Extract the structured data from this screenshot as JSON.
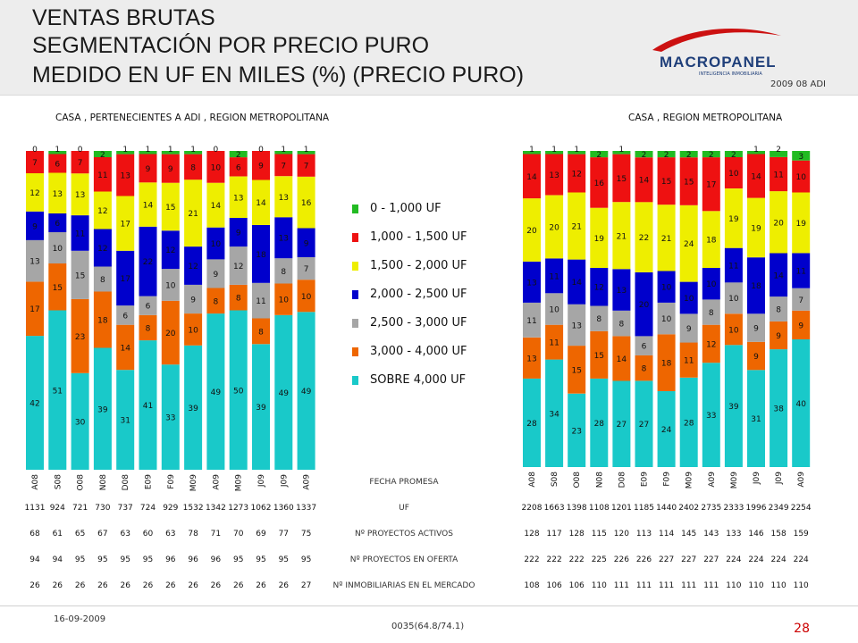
{
  "header": {
    "title_lines": [
      "VENTAS BRUTAS",
      "SEGMENTACIÓN POR PRECIO PURO",
      "MEDIDO EN UF EN MILES (%) (PRECIO PURO)"
    ],
    "logo": "MACROPANEL",
    "logo_sub": "INTELIGENCIA INMOBILIARIA",
    "date_tag": "2009 08 ADI"
  },
  "legend": [
    {
      "label": "0 - 1,000 UF",
      "color": "#22bb22"
    },
    {
      "label": "1,000 - 1,500 UF",
      "color": "#ee1111"
    },
    {
      "label": "1,500 - 2,000 UF",
      "color": "#eeee00"
    },
    {
      "label": "2,000 - 2,500 UF",
      "color": "#0000cc"
    },
    {
      "label": "2,500 - 3,000 UF",
      "color": "#a6a6a6"
    },
    {
      "label": "3,000 - 4,000 UF",
      "color": "#ee6600"
    },
    {
      "label": "SOBRE 4,000 UF",
      "color": "#19c9c9"
    }
  ],
  "row_labels": [
    "FECHA PROMESA",
    "UF",
    "Nº PROYECTOS ACTIVOS",
    "Nº PROYECTOS EN OFERTA",
    "Nº INMOBILIARIAS EN EL MERCADO"
  ],
  "footer": {
    "date": "16-09-2009",
    "code": "0035(64.8/74.1)",
    "page": "28"
  },
  "chart_data": [
    {
      "type": "bar",
      "stacked": true,
      "title": "CASA , PERTENECIENTES A ADI , REGION METROPOLITANA",
      "categories": [
        "A08",
        "S08",
        "O08",
        "N08",
        "D08",
        "E09",
        "F09",
        "M09",
        "A09",
        "M09",
        "J09",
        "J09",
        "A09"
      ],
      "series": [
        {
          "name": "SOBRE 4,000 UF",
          "values": [
            42,
            51,
            30,
            39,
            31,
            41,
            33,
            39,
            49,
            50,
            39,
            49,
            49
          ]
        },
        {
          "name": "3,000 - 4,000 UF",
          "values": [
            17,
            15,
            23,
            18,
            14,
            8,
            20,
            10,
            8,
            8,
            8,
            10,
            10
          ]
        },
        {
          "name": "2,500 - 3,000 UF",
          "values": [
            13,
            10,
            15,
            8,
            6,
            6,
            10,
            9,
            9,
            12,
            11,
            8,
            7
          ]
        },
        {
          "name": "2,000 - 2,500 UF",
          "values": [
            9,
            6,
            11,
            12,
            17,
            22,
            12,
            12,
            10,
            9,
            18,
            13,
            9
          ]
        },
        {
          "name": "1,500 - 2,000 UF",
          "values": [
            12,
            13,
            13,
            12,
            17,
            14,
            15,
            21,
            14,
            13,
            14,
            13,
            16
          ]
        },
        {
          "name": "1,000 - 1,500 UF",
          "values": [
            7,
            6,
            7,
            11,
            13,
            9,
            9,
            8,
            10,
            6,
            9,
            7,
            7
          ]
        },
        {
          "name": "0 - 1,000 UF",
          "values": [
            0,
            1,
            0,
            2,
            1,
            1,
            1,
            1,
            0,
            2,
            0,
            1,
            1
          ]
        }
      ],
      "table": {
        "uf": [
          1131,
          924,
          721,
          730,
          737,
          724,
          929,
          1532,
          1342,
          1273,
          1062,
          1360,
          1337
        ],
        "proyectos_activos": [
          68,
          61,
          65,
          67,
          63,
          60,
          63,
          78,
          71,
          70,
          69,
          77,
          75
        ],
        "proyectos_oferta": [
          94,
          94,
          95,
          95,
          95,
          95,
          96,
          96,
          96,
          95,
          95,
          95,
          95
        ],
        "inmobiliarias": [
          26,
          26,
          26,
          26,
          26,
          26,
          26,
          26,
          26,
          26,
          26,
          26,
          27
        ]
      }
    },
    {
      "type": "bar",
      "stacked": true,
      "title": "CASA , REGION METROPOLITANA",
      "categories": [
        "A08",
        "S08",
        "O08",
        "N08",
        "D08",
        "E09",
        "F09",
        "M09",
        "A09",
        "M09",
        "J09",
        "J09",
        "A09"
      ],
      "series": [
        {
          "name": "SOBRE 4,000 UF",
          "values": [
            28,
            34,
            23,
            28,
            27,
            27,
            24,
            28,
            33,
            39,
            31,
            38,
            40
          ]
        },
        {
          "name": "3,000 - 4,000 UF",
          "values": [
            13,
            11,
            15,
            15,
            14,
            8,
            18,
            11,
            12,
            10,
            9,
            9,
            9
          ]
        },
        {
          "name": "2,500 - 3,000 UF",
          "values": [
            11,
            10,
            13,
            8,
            8,
            6,
            10,
            9,
            8,
            10,
            9,
            8,
            7
          ]
        },
        {
          "name": "2,000 - 2,500 UF",
          "values": [
            13,
            11,
            14,
            12,
            13,
            20,
            10,
            10,
            10,
            11,
            18,
            14,
            11
          ]
        },
        {
          "name": "1,500 - 2,000 UF",
          "values": [
            20,
            20,
            21,
            19,
            21,
            22,
            21,
            24,
            18,
            19,
            19,
            20,
            19
          ]
        },
        {
          "name": "1,000 - 1,500 UF",
          "values": [
            14,
            13,
            12,
            16,
            15,
            14,
            15,
            15,
            17,
            10,
            14,
            11,
            10
          ]
        },
        {
          "name": "0 - 1,000 UF",
          "values": [
            1,
            1,
            1,
            2,
            1,
            2,
            2,
            2,
            2,
            2,
            1,
            2,
            3
          ]
        }
      ],
      "table": {
        "uf": [
          2208,
          1663,
          1398,
          1108,
          1201,
          1185,
          1440,
          2402,
          2735,
          2333,
          1996,
          2349,
          2254
        ],
        "proyectos_activos": [
          128,
          117,
          128,
          115,
          120,
          113,
          114,
          145,
          143,
          133,
          146,
          158,
          159
        ],
        "proyectos_oferta": [
          222,
          222,
          222,
          225,
          226,
          226,
          227,
          227,
          227,
          224,
          224,
          224,
          224
        ],
        "inmobiliarias": [
          108,
          106,
          106,
          110,
          111,
          111,
          111,
          111,
          111,
          110,
          110,
          110,
          110
        ]
      }
    }
  ]
}
